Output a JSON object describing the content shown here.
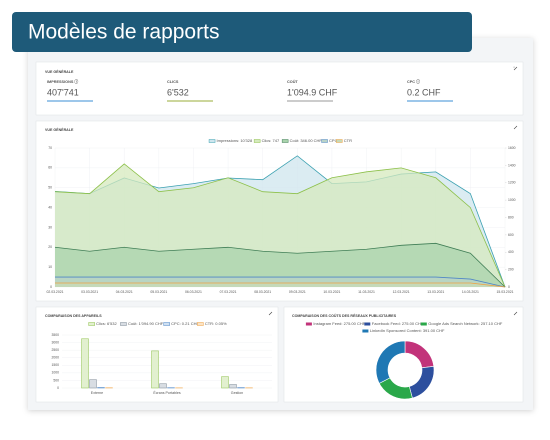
{
  "header": {
    "title": "Modèles de rapports"
  },
  "kpi_panel": {
    "title": "VUE GÉNÉRALE",
    "items": [
      {
        "label": "IMPRESSIONS ⓘ",
        "value": "407'741",
        "color": "#3b8fd6"
      },
      {
        "label": "CLICS",
        "value": "6'532",
        "color": "#9aad3a"
      },
      {
        "label": "COÛT",
        "value": "1'094.9 CHF",
        "color": "#9a9a9a"
      },
      {
        "label": "CPC ⓘ",
        "value": "0.2 CHF",
        "color": "#3b8fd6"
      }
    ]
  },
  "chart_data": [
    {
      "type": "area",
      "title": "VUE GÉNÉRALE",
      "categories": [
        "02.03.2021",
        "03.03.2021",
        "04.03.2021",
        "05.03.2021",
        "06.03.2021",
        "07.03.2021",
        "08.03.2021",
        "09.03.2021",
        "10.03.2021",
        "11.03.2021",
        "12.03.2021",
        "13.03.2021",
        "14.03.2021",
        "15.03.2021"
      ],
      "ylim": [
        0,
        70
      ],
      "yticks": [
        0,
        10,
        20,
        30,
        40,
        50,
        60,
        70
      ],
      "y2lim": [
        0,
        1600
      ],
      "y2ticks": [
        0,
        200,
        400,
        600,
        800,
        1000,
        1200,
        1400,
        1600
      ],
      "grid": true,
      "series": [
        {
          "name": "Impressions: 10'328",
          "color": "#3aa0b0",
          "fill": "#cfe6ee",
          "axis": "y2",
          "values": [
            1100,
            1075,
            1255,
            1140,
            1190,
            1255,
            1235,
            1510,
            1190,
            1210,
            1300,
            1325,
            1075,
            0
          ]
        },
        {
          "name": "Clics: 747",
          "color": "#8dc04a",
          "fill": "#d5eabd",
          "values": [
            48,
            47,
            62,
            48,
            50,
            55,
            48,
            47,
            55,
            58,
            60,
            55,
            40,
            0
          ]
        },
        {
          "name": "Coût: 346.00 CHF",
          "color": "#3f7d55",
          "fill": "#a9d3ac",
          "values": [
            20,
            18,
            20,
            18,
            19,
            20,
            18,
            17,
            18,
            19,
            21,
            22,
            17,
            0
          ]
        },
        {
          "name": "CPC",
          "color": "#4f86c6",
          "fill": "#b9d3c8",
          "values": [
            5,
            5,
            5,
            5,
            5,
            5,
            5,
            5,
            5,
            5,
            5,
            5,
            4,
            0
          ]
        },
        {
          "name": "CTR",
          "color": "#f0a040",
          "fill": "#c9d9b5",
          "values": [
            2,
            2,
            2,
            2,
            2,
            2,
            2,
            2,
            2,
            2,
            2,
            2,
            2,
            0
          ]
        }
      ]
    },
    {
      "type": "bar",
      "title": "COMPARAISON DES APPAREILS",
      "categories": [
        "Externe",
        "Écrans Portables",
        "Gestion"
      ],
      "ylim": [
        0,
        3500
      ],
      "yticks": [
        0,
        500,
        1000,
        1500,
        2000,
        2500,
        3000,
        3500
      ],
      "grid": true,
      "series": [
        {
          "name": "Clics: 6'532",
          "color": "#8dc04a",
          "fill": "#e2f0cf",
          "values": [
            3250,
            2450,
            750
          ]
        },
        {
          "name": "Coût: 1'094.90 CHF",
          "color": "#7d8a96",
          "fill": "#d8dde3",
          "values": [
            550,
            280,
            230
          ]
        },
        {
          "name": "CPC: 0.21 CHF",
          "color": "#4f86c6",
          "fill": "#cfe0f2",
          "values": [
            30,
            20,
            25
          ]
        },
        {
          "name": "CTR: 0.05%",
          "color": "#f0a040",
          "fill": "#fbe3c4",
          "values": [
            15,
            10,
            12
          ]
        }
      ]
    },
    {
      "type": "donut",
      "title": "COMPARAISON DES COÛTS DES RÉSEAUX PUBLICITAIRES",
      "categories": [
        "Instagram Feed: 275.00 CHF",
        "Facebook Feed: 275.00 CHF",
        "Google Ads Search Network: 257.10 CHF",
        "LinkedIn Sponsored Content: 391.00 CHF"
      ],
      "values": [
        275,
        275,
        257.1,
        391
      ],
      "colors": [
        "#c2337a",
        "#2d4f9e",
        "#2aa84a",
        "#1f78b4"
      ]
    }
  ]
}
